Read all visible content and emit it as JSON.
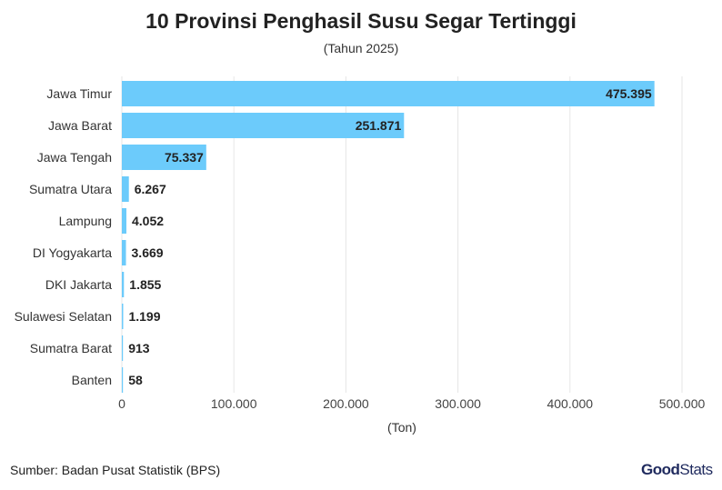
{
  "chart_data": {
    "type": "bar",
    "orientation": "horizontal",
    "title": "10 Provinsi Penghasil Susu Segar Tertinggi",
    "subtitle": "(Tahun 2025)",
    "xlabel": "(Ton)",
    "ylabel": "",
    "categories": [
      "Jawa Timur",
      "Jawa Barat",
      "Jawa Tengah",
      "Sumatra Utara",
      "Lampung",
      "DI Yogyakarta",
      "DKI Jakarta",
      "Sulawesi Selatan",
      "Sumatra Barat",
      "Banten"
    ],
    "values": [
      475395,
      251871,
      75337,
      6267,
      4052,
      3669,
      1855,
      1199,
      913,
      58
    ],
    "value_labels": [
      "475.395",
      "251.871",
      "75.337",
      "6.267",
      "4.052",
      "3.669",
      "1.855",
      "1.199",
      "913",
      "58"
    ],
    "xlim": [
      0,
      500000
    ],
    "xticks": [
      0,
      100000,
      200000,
      300000,
      400000,
      500000
    ],
    "xtick_labels": [
      "0",
      "100.000",
      "200.000",
      "300.000",
      "400.000",
      "500.000"
    ],
    "grid": true,
    "bar_color": "#6ccbfb",
    "grid_color": "#e6e6e6"
  },
  "source": "Sumber: Badan Pusat Statistik (BPS)",
  "brand": {
    "bold": "Good",
    "light": "Stats"
  }
}
